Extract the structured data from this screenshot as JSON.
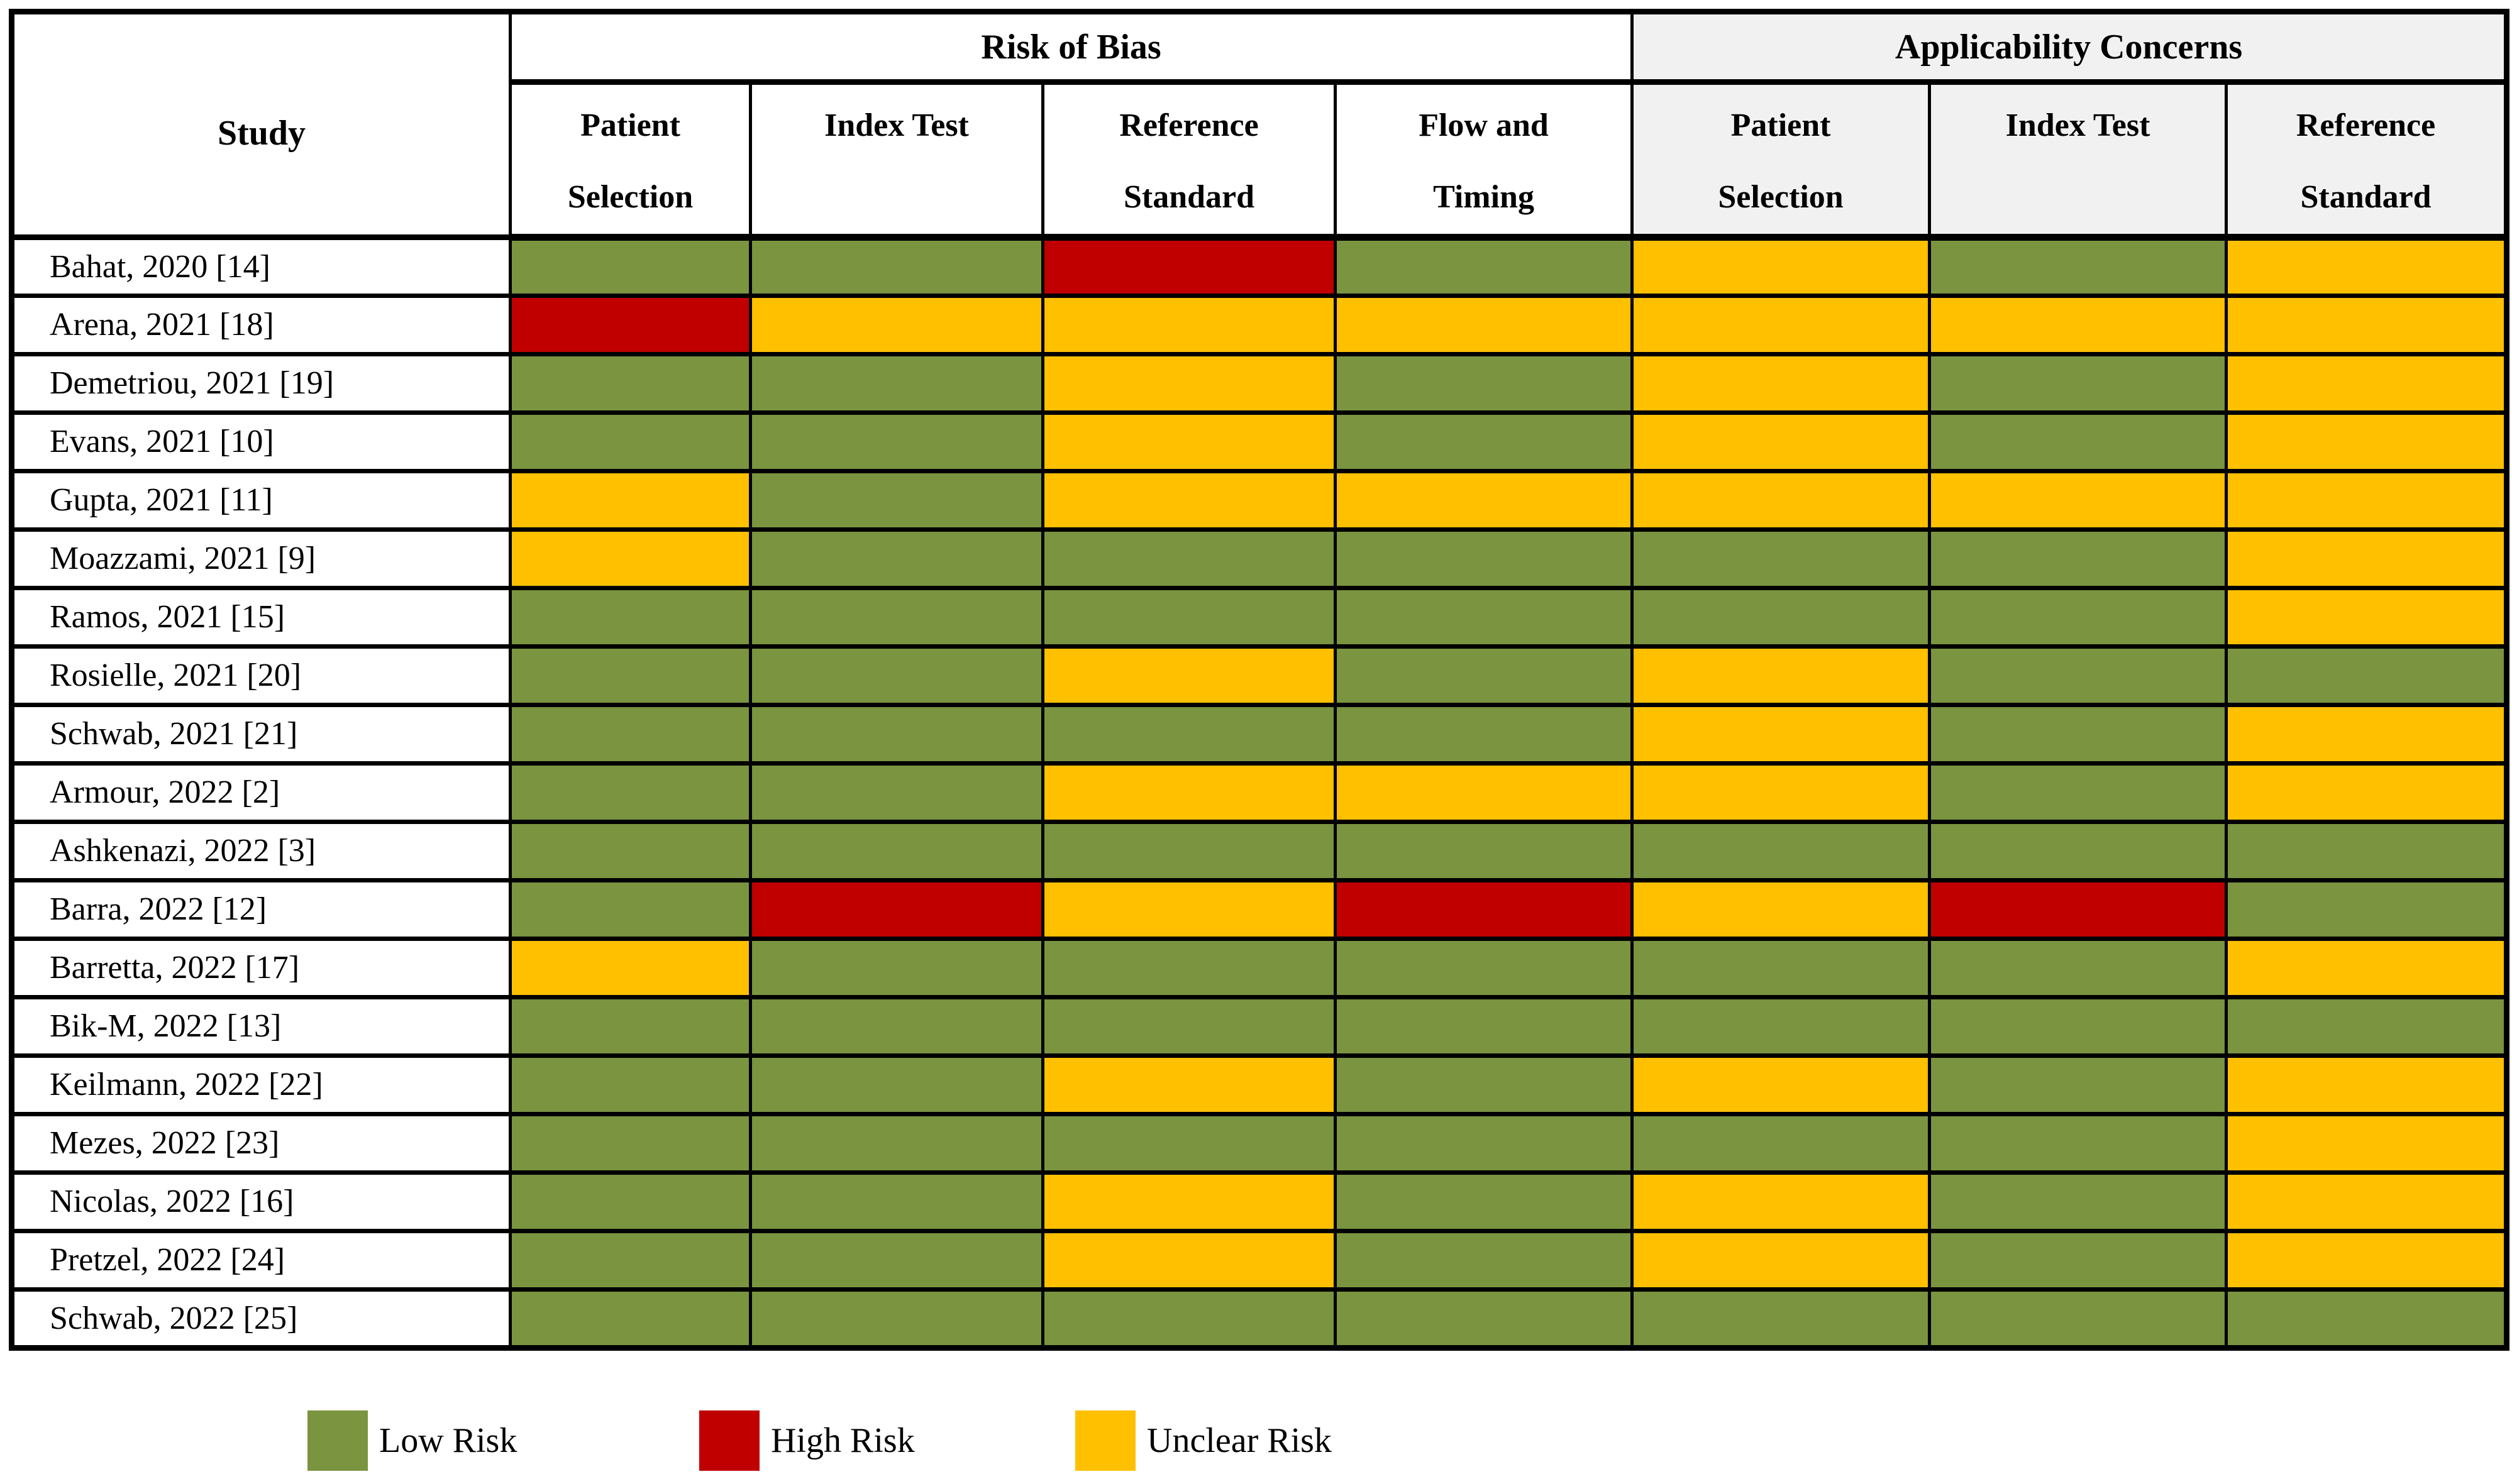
{
  "table": {
    "study_header": "Study",
    "groups": [
      {
        "label": "Risk of Bias",
        "columns": [
          "Patient\nSelection",
          "Index Test",
          "Reference\nStandard",
          "Flow and\nTiming"
        ]
      },
      {
        "label": "Applicability Concerns",
        "columns": [
          "Patient\nSelection",
          "Index Test",
          "Reference\nStandard"
        ]
      }
    ],
    "rows": [
      {
        "study": "Bahat, 2020 [14]",
        "risk_of_bias": [
          "low",
          "low",
          "high",
          "low"
        ],
        "applicability": [
          "unclear",
          "low",
          "unclear"
        ]
      },
      {
        "study": "Arena, 2021 [18]",
        "risk_of_bias": [
          "high",
          "unclear",
          "unclear",
          "unclear"
        ],
        "applicability": [
          "unclear",
          "unclear",
          "unclear"
        ]
      },
      {
        "study": "Demetriou, 2021 [19]",
        "risk_of_bias": [
          "low",
          "low",
          "unclear",
          "low"
        ],
        "applicability": [
          "unclear",
          "low",
          "unclear"
        ]
      },
      {
        "study": "Evans, 2021 [10]",
        "risk_of_bias": [
          "low",
          "low",
          "unclear",
          "low"
        ],
        "applicability": [
          "unclear",
          "low",
          "unclear"
        ]
      },
      {
        "study": "Gupta, 2021 [11]",
        "risk_of_bias": [
          "unclear",
          "low",
          "unclear",
          "unclear"
        ],
        "applicability": [
          "unclear",
          "unclear",
          "unclear"
        ]
      },
      {
        "study": "Moazzami, 2021 [9]",
        "risk_of_bias": [
          "unclear",
          "low",
          "low",
          "low"
        ],
        "applicability": [
          "low",
          "low",
          "unclear"
        ]
      },
      {
        "study": "Ramos, 2021 [15]",
        "risk_of_bias": [
          "low",
          "low",
          "low",
          "low"
        ],
        "applicability": [
          "low",
          "low",
          "unclear"
        ]
      },
      {
        "study": "Rosielle, 2021 [20]",
        "risk_of_bias": [
          "low",
          "low",
          "unclear",
          "low"
        ],
        "applicability": [
          "unclear",
          "low",
          "low"
        ]
      },
      {
        "study": "Schwab, 2021 [21]",
        "risk_of_bias": [
          "low",
          "low",
          "low",
          "low"
        ],
        "applicability": [
          "unclear",
          "low",
          "unclear"
        ]
      },
      {
        "study": "Armour, 2022 [2]",
        "risk_of_bias": [
          "low",
          "low",
          "unclear",
          "unclear"
        ],
        "applicability": [
          "unclear",
          "low",
          "unclear"
        ]
      },
      {
        "study": "Ashkenazi, 2022 [3]",
        "risk_of_bias": [
          "low",
          "low",
          "low",
          "low"
        ],
        "applicability": [
          "low",
          "low",
          "low"
        ]
      },
      {
        "study": "Barra, 2022 [12]",
        "risk_of_bias": [
          "low",
          "high",
          "unclear",
          "high"
        ],
        "applicability": [
          "unclear",
          "high",
          "low"
        ]
      },
      {
        "study": "Barretta, 2022 [17]",
        "risk_of_bias": [
          "unclear",
          "low",
          "low",
          "low"
        ],
        "applicability": [
          "low",
          "low",
          "unclear"
        ]
      },
      {
        "study": "Bik-M, 2022 [13]",
        "risk_of_bias": [
          "low",
          "low",
          "low",
          "low"
        ],
        "applicability": [
          "low",
          "low",
          "low"
        ]
      },
      {
        "study": "Keilmann, 2022 [22]",
        "risk_of_bias": [
          "low",
          "low",
          "unclear",
          "low"
        ],
        "applicability": [
          "unclear",
          "low",
          "unclear"
        ]
      },
      {
        "study": "Mezes, 2022 [23]",
        "risk_of_bias": [
          "low",
          "low",
          "low",
          "low"
        ],
        "applicability": [
          "low",
          "low",
          "unclear"
        ]
      },
      {
        "study": "Nicolas, 2022 [16]",
        "risk_of_bias": [
          "low",
          "low",
          "unclear",
          "low"
        ],
        "applicability": [
          "unclear",
          "low",
          "unclear"
        ]
      },
      {
        "study": "Pretzel, 2022 [24]",
        "risk_of_bias": [
          "low",
          "low",
          "unclear",
          "low"
        ],
        "applicability": [
          "unclear",
          "low",
          "unclear"
        ]
      },
      {
        "study": "Schwab, 2022 [25]",
        "risk_of_bias": [
          "low",
          "low",
          "low",
          "low"
        ],
        "applicability": [
          "low",
          "low",
          "low"
        ]
      }
    ]
  },
  "legend": {
    "items": [
      {
        "label": "Low Risk",
        "level": "low"
      },
      {
        "label": "High Risk",
        "level": "high"
      },
      {
        "label": "Unclear Risk",
        "level": "unclear"
      }
    ]
  },
  "colors": {
    "low": "#7A9440",
    "high": "#C00000",
    "unclear": "#FFC000",
    "applicability_header_bg": "#F1F1F1",
    "border": "#000000",
    "page_bg": "#FFFFFF"
  }
}
